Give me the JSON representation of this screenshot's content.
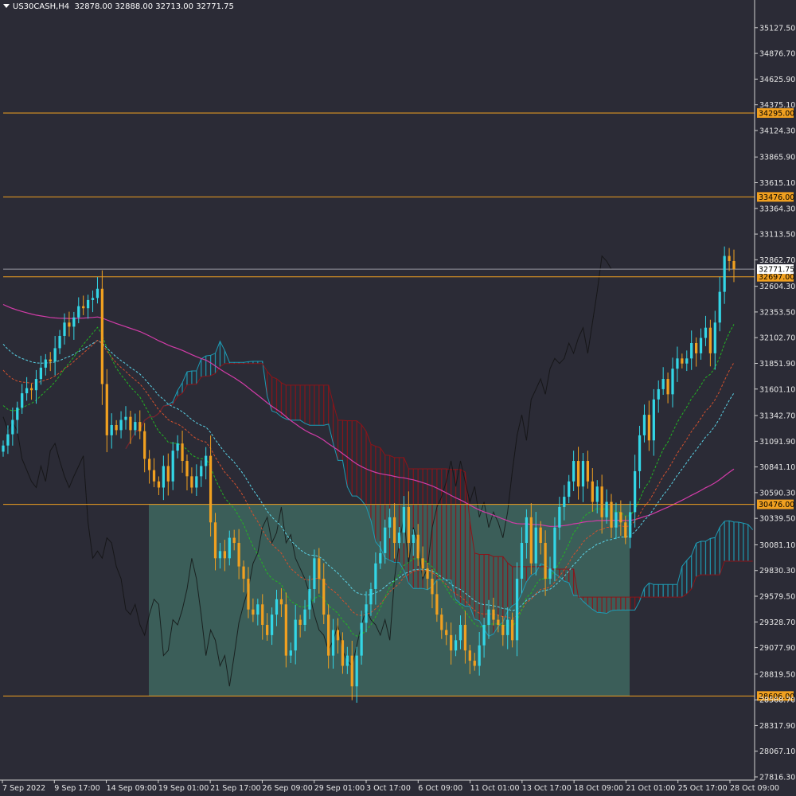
{
  "header": {
    "symbol": "US30CASH,H4",
    "ohlc": "32878.00 32888.00 32713.00 32771.75"
  },
  "colors": {
    "background": "#2b2b36",
    "bull": "#33d6e6",
    "bear": "#f0a020",
    "level": "#f0a020",
    "zone": "#3e675f",
    "ma_long": "#d23ca8",
    "ma_cyan": "#5ad2e6",
    "ma_red": "#d2502d",
    "ma_green": "#23b423",
    "kumo_bear": "#8c1419",
    "kumo_bull": "#1e9bb4",
    "chikou": "#111111"
  },
  "chart_data": {
    "type": "candlestick",
    "symbol": "US30CASH",
    "timeframe": "H4",
    "ylim": [
      27816.36,
      35258.0
    ],
    "price_ticks": [
      "35127.50",
      "34876.70",
      "34625.90",
      "34375.10",
      "34124.30",
      "33865.90",
      "33615.10",
      "33364.30",
      "33113.50",
      "32862.70",
      "32604.30",
      "32353.50",
      "32102.70",
      "31851.90",
      "31601.10",
      "31342.70",
      "31091.90",
      "30841.10",
      "30590.30",
      "30339.50",
      "30081.10",
      "29830.30",
      "29579.50",
      "29328.70",
      "29077.90",
      "28819.50",
      "28568.70",
      "28317.90",
      "28067.10",
      "27816.30"
    ],
    "time_ticks": [
      "7 Sep 2022",
      "9 Sep 17:00",
      "14 Sep 09:00",
      "19 Sep 01:00",
      "21 Sep 17:00",
      "26 Sep 09:00",
      "29 Sep 01:00",
      "3 Oct 17:00",
      "6 Oct 09:00",
      "11 Oct 01:00",
      "13 Oct 17:00",
      "18 Oct 09:00",
      "21 Oct 01:00",
      "25 Oct 17:00",
      "28 Oct 09:00"
    ],
    "levels": [
      {
        "price": 34295.0,
        "label": "34295.00"
      },
      {
        "price": 33476.0,
        "label": "33476.00"
      },
      {
        "price": 32697.0,
        "label": "32697.00"
      },
      {
        "price": 30476.0,
        "label": "30476.00"
      },
      {
        "price": 28606.0,
        "label": "28606.00"
      }
    ],
    "current_price": {
      "price": 32771.75,
      "label": "32771.75"
    },
    "zone": {
      "price_top": 30476.0,
      "price_bottom": 28606.0
    },
    "closes": [
      31050,
      31160,
      31300,
      31420,
      31560,
      31610,
      31590,
      31700,
      31810,
      31890,
      31870,
      32000,
      32120,
      32250,
      32210,
      32300,
      32410,
      32390,
      32470,
      32490,
      32580,
      31650,
      31150,
      31250,
      31200,
      31300,
      31330,
      31200,
      31280,
      31190,
      30920,
      30810,
      30700,
      30640,
      30850,
      30700,
      31000,
      31070,
      30900,
      30750,
      30640,
      30750,
      30850,
      30950,
      30300,
      29950,
      30020,
      29950,
      30150,
      30100,
      29870,
      29750,
      29450,
      29400,
      29500,
      29300,
      29200,
      29400,
      29550,
      29500,
      29000,
      29050,
      29350,
      29300,
      29450,
      29650,
      29950,
      29750,
      29400,
      29000,
      29250,
      29150,
      28900,
      29000,
      28700,
      29000,
      29320,
      29500,
      29650,
      29900,
      30000,
      30250,
      30350,
      30100,
      30200,
      30450,
      30100,
      30180,
      29950,
      29850,
      29750,
      29600,
      29400,
      29250,
      29200,
      29050,
      29150,
      29300,
      29050,
      28950,
      28900,
      29100,
      29300,
      29450,
      29350,
      29300,
      29200,
      29350,
      29150,
      29750,
      30100,
      30350,
      29900,
      30250,
      30100,
      29750,
      29850,
      30250,
      30450,
      30550,
      30700,
      30900,
      30650,
      30900,
      30700,
      30500,
      30650,
      30350,
      30500,
      30250,
      30400,
      30300,
      30150,
      30400,
      30800,
      31150,
      31350,
      31100,
      31500,
      31600,
      31700,
      31550,
      31800,
      31900,
      31850,
      31900,
      32050,
      31950,
      32100,
      32200,
      31950,
      32250,
      32550,
      32900,
      32850,
      32771.75
    ]
  }
}
